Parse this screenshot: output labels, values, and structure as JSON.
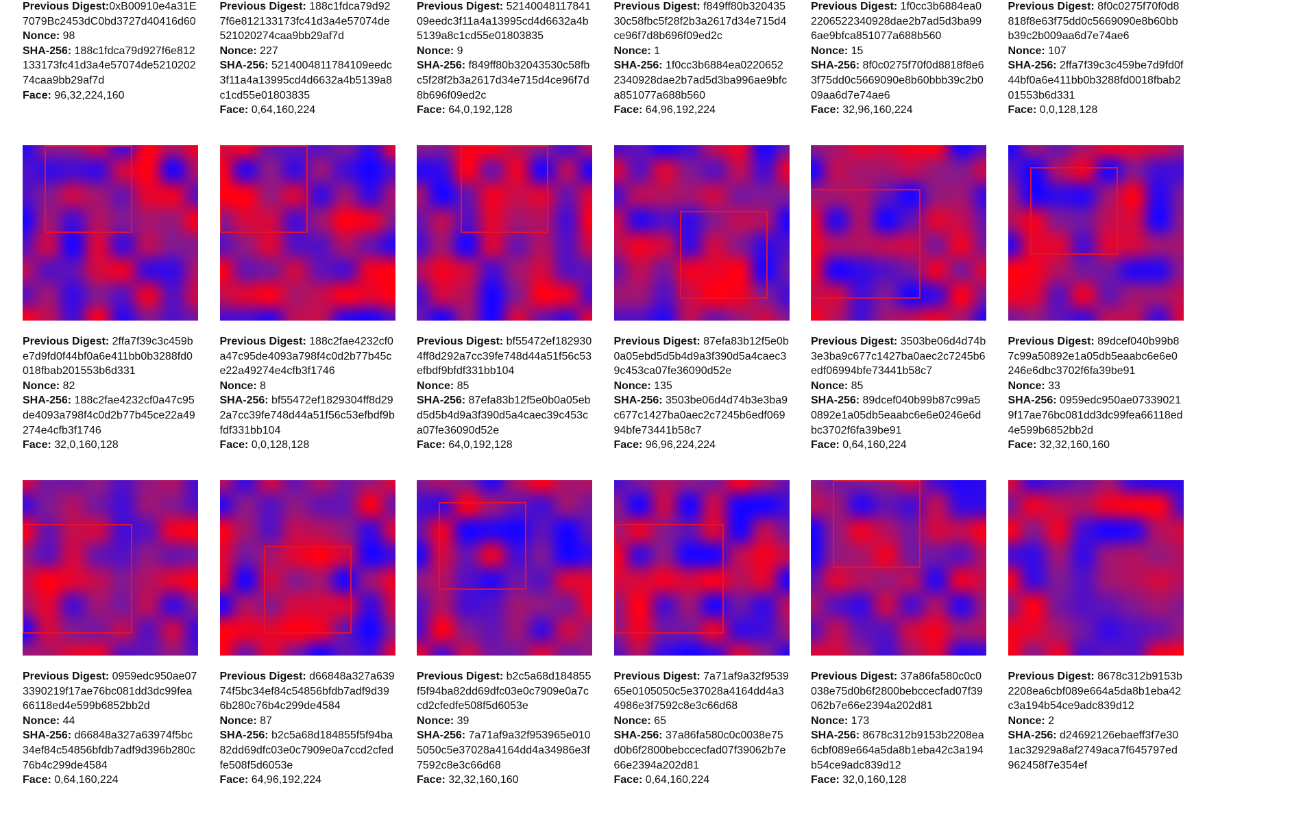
{
  "page": {
    "background": "#ffffff",
    "text_color": "#111111"
  },
  "style": {
    "face_box_color": "#e3122d",
    "noise_blue": "#1206e6",
    "noise_red": "#e60612"
  },
  "labels": {
    "previous_digest": "Previous Digest:",
    "nonce": "Nonce:",
    "sha256": "SHA-256:",
    "face": "Face:"
  },
  "blocks": [
    {
      "previous_digest": "0xB00910e4a31E7079Bc2453dC0bd3727d40416d60",
      "no_space_after_digest_label": true,
      "nonce": "98",
      "sha256": "188c1fdca79d927f6e812133173fc41d3a4e57074de521020274caa9bb29af7d",
      "face": "96,32,224,160"
    },
    {
      "previous_digest": "188c1fdca79d927f6e812133173fc41d3a4e57074de521020274caa9bb29af7d",
      "nonce": "227",
      "sha256": "5214004811784109eedc3f11a4a13995cd4d6632a4b5139a8c1cd55e01803835",
      "face": "0,64,160,224"
    },
    {
      "previous_digest": "5214004811784109eedc3f11a4a13995cd4d6632a4b5139a8c1cd55e01803835",
      "nonce": "9",
      "sha256": "f849ff80b32043530c58fbc5f28f2b3a2617d34e715d4ce96f7d8b696f09ed2c",
      "face": "64,0,192,128"
    },
    {
      "previous_digest": "f849ff80b32043530c58fbc5f28f2b3a2617d34e715d4ce96f7d8b696f09ed2c",
      "nonce": "1",
      "sha256": "1f0cc3b6884ea02206522340928dae2b7ad5d3ba996ae9bfca851077a688b560",
      "face": "64,96,192,224"
    },
    {
      "previous_digest": "1f0cc3b6884ea02206522340928dae2b7ad5d3ba996ae9bfca851077a688b560",
      "nonce": "15",
      "sha256": "8f0c0275f70f0d8818f8e63f75dd0c5669090e8b60bbb39c2b009aa6d7e74ae6",
      "face": "32,96,160,224"
    },
    {
      "previous_digest": "8f0c0275f70f0d8818f8e63f75dd0c5669090e8b60bbb39c2b009aa6d7e74ae6",
      "nonce": "107",
      "sha256": "2ffa7f39c3c459be7d9fd0f44bf0a6e411bb0b3288fd0018fbab201553b6d331",
      "face": "0,0,128,128"
    },
    {
      "previous_digest": "2ffa7f39c3c459be7d9fd0f44bf0a6e411bb0b3288fd0018fbab201553b6d331",
      "nonce": "82",
      "sha256": "188c2fae4232cf0a47c95de4093a798f4c0d2b77b45ce22a49274e4cfb3f1746",
      "face": "32,0,160,128"
    },
    {
      "previous_digest": "188c2fae4232cf0a47c95de4093a798f4c0d2b77b45ce22a49274e4cfb3f1746",
      "nonce": "8",
      "sha256": "bf55472ef1829304ff8d292a7cc39fe748d44a51f56c53efbdf9bfdf331bb104",
      "face": "0,0,128,128"
    },
    {
      "previous_digest": "bf55472ef1829304ff8d292a7cc39fe748d44a51f56c53efbdf9bfdf331bb104",
      "nonce": "85",
      "sha256": "87efa83b12f5e0b0a05ebd5d5b4d9a3f390d5a4caec39c453ca07fe36090d52e",
      "face": "64,0,192,128"
    },
    {
      "previous_digest": "87efa83b12f5e0b0a05ebd5d5b4d9a3f390d5a4caec39c453ca07fe36090d52e",
      "nonce": "135",
      "sha256": "3503be06d4d74b3e3ba9c677c1427ba0aec2c7245b6edf06994bfe73441b58c7",
      "face": "96,96,224,224"
    },
    {
      "previous_digest": "3503be06d4d74b3e3ba9c677c1427ba0aec2c7245b6edf06994bfe73441b58c7",
      "nonce": "85",
      "sha256": "89dcef040b99b87c99a50892e1a05db5eaabc6e6e0246e6dbc3702f6fa39be91",
      "face": "0,64,160,224"
    },
    {
      "previous_digest": "89dcef040b99b87c99a50892e1a05db5eaabc6e6e0246e6dbc3702f6fa39be91",
      "nonce": "33",
      "sha256": "0959edc950ae073390219f17ae76bc081dd3dc99fea66118ed4e599b6852bb2d",
      "face": "32,32,160,160"
    },
    {
      "previous_digest": "0959edc950ae073390219f17ae76bc081dd3dc99fea66118ed4e599b6852bb2d",
      "nonce": "44",
      "sha256": "d66848a327a63974f5bc34ef84c54856bfdb7adf9d396b280c76b4c299de4584",
      "face": "0,64,160,224"
    },
    {
      "previous_digest": "d66848a327a63974f5bc34ef84c54856bfdb7adf9d396b280c76b4c299de4584",
      "nonce": "87",
      "sha256": "b2c5a68d184855f5f94ba82dd69dfc03e0c7909e0a7ccd2cfedfe508f5d6053e",
      "face": "64,96,192,224"
    },
    {
      "previous_digest": "b2c5a68d184855f5f94ba82dd69dfc03e0c7909e0a7ccd2cfedfe508f5d6053e",
      "nonce": "39",
      "sha256": "7a71af9a32f953965e0105050c5e37028a4164dd4a34986e3f7592c8e3c66d68",
      "face": "32,32,160,160"
    },
    {
      "previous_digest": "7a71af9a32f953965e0105050c5e37028a4164dd4a34986e3f7592c8e3c66d68",
      "nonce": "65",
      "sha256": "37a86fa580c0c0038e75d0b6f2800bebccecfad07f39062b7e66e2394a202d81",
      "face": "0,64,160,224"
    },
    {
      "previous_digest": "37a86fa580c0c0038e75d0b6f2800bebccecfad07f39062b7e66e2394a202d81",
      "nonce": "173",
      "sha256": "8678c312b9153b2208ea6cbf089e664a5da8b1eba42c3a194b54ce9adc839d12",
      "face": "32,0,160,128"
    },
    {
      "previous_digest": "8678c312b9153b2208ea6cbf089e664a5da8b1eba42c3a194b54ce9adc839d12",
      "nonce": "2",
      "sha256": "d24692126ebaeff3f7e301ac32929a8af2749aca7f645797ed962458f7e354ef"
    }
  ]
}
